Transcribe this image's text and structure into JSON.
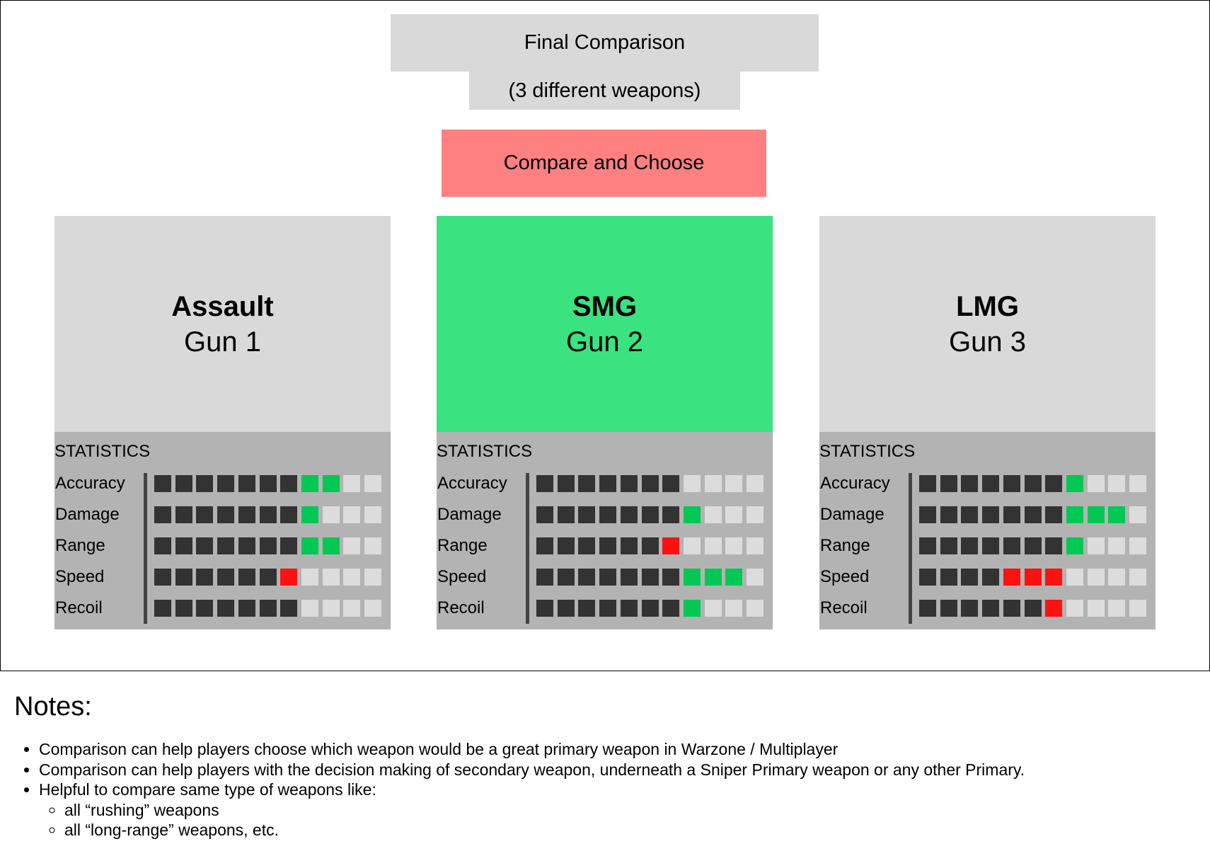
{
  "header": {
    "title": "Final Comparison",
    "subtitle": "(3 different weapons)",
    "compare_button": "Compare and Choose"
  },
  "stat_scale_max": 11,
  "colors": {
    "card_default": "#d9d9d9",
    "card_selected": "#3ae37f",
    "compare_button": "#ff8080",
    "stat_filled": "#333333",
    "stat_bonus": "#00c853",
    "stat_penalty": "#ff1111",
    "stat_empty": "#dcdcdc",
    "stats_panel": "#b3b3b3"
  },
  "weapons": [
    {
      "type": "Assault",
      "name": "Gun 1",
      "selected": false,
      "stats_title": "STATISTICS",
      "stats": [
        {
          "label": "Accuracy",
          "base": 7,
          "bonus": 2,
          "penalty": 0
        },
        {
          "label": "Damage",
          "base": 7,
          "bonus": 1,
          "penalty": 0
        },
        {
          "label": "Range",
          "base": 7,
          "bonus": 2,
          "penalty": 0
        },
        {
          "label": "Speed",
          "base": 6,
          "bonus": 0,
          "penalty": 1
        },
        {
          "label": "Recoil",
          "base": 7,
          "bonus": 0,
          "penalty": 0
        }
      ]
    },
    {
      "type": "SMG",
      "name": "Gun 2",
      "selected": true,
      "stats_title": "STATISTICS",
      "stats": [
        {
          "label": "Accuracy",
          "base": 7,
          "bonus": 0,
          "penalty": 0
        },
        {
          "label": "Damage",
          "base": 7,
          "bonus": 1,
          "penalty": 0
        },
        {
          "label": "Range",
          "base": 6,
          "bonus": 0,
          "penalty": 1
        },
        {
          "label": "Speed",
          "base": 7,
          "bonus": 3,
          "penalty": 0
        },
        {
          "label": "Recoil",
          "base": 7,
          "bonus": 1,
          "penalty": 0
        }
      ]
    },
    {
      "type": "LMG",
      "name": "Gun 3",
      "selected": false,
      "stats_title": "STATISTICS",
      "stats": [
        {
          "label": "Accuracy",
          "base": 7,
          "bonus": 1,
          "penalty": 0
        },
        {
          "label": "Damage",
          "base": 7,
          "bonus": 3,
          "penalty": 0
        },
        {
          "label": "Range",
          "base": 7,
          "bonus": 1,
          "penalty": 0
        },
        {
          "label": "Speed",
          "base": 4,
          "bonus": 0,
          "penalty": 3
        },
        {
          "label": "Recoil",
          "base": 6,
          "bonus": 0,
          "penalty": 1
        }
      ]
    }
  ],
  "notes": {
    "title": "Notes:",
    "items": [
      "Comparison can help players choose which weapon would be a great primary weapon in Warzone / Multiplayer",
      "Comparison can help players with the decision making of secondary weapon, underneath a Sniper Primary weapon or any other Primary.",
      "Helpful to compare same type of weapons like:"
    ],
    "subitems": [
      "all “rushing” weapons",
      "all “long-range” weapons, etc."
    ]
  }
}
